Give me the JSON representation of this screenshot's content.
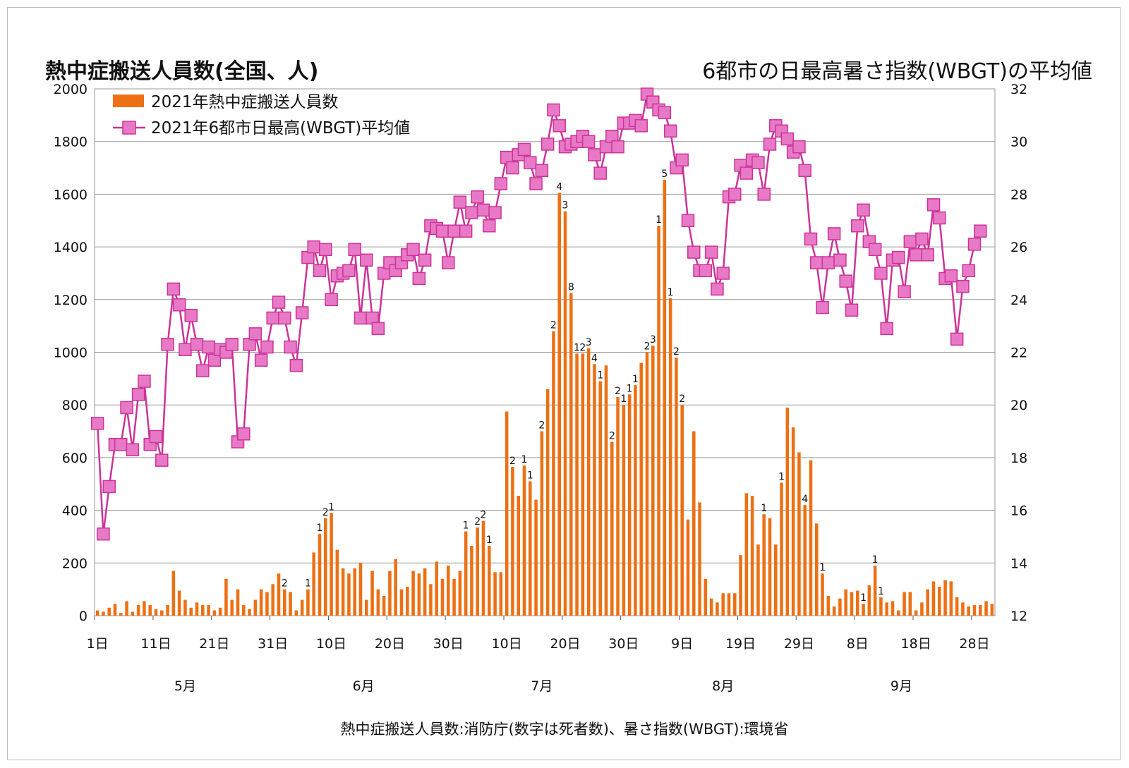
{
  "chart_data": {
    "type": "bar+line",
    "title_left": "熱中症搬送人員数(全国、人)",
    "title_right": "6都市の日最高暑さ指数(WBGT)の平均値",
    "source": "熱中症搬送人員数:消防庁(数字は死者数)、暑さ指数(WBGT):環境省",
    "left_axis": {
      "min": 0,
      "max": 2000,
      "ticks": [
        "0",
        "200",
        "400",
        "600",
        "800",
        "1000",
        "1200",
        "1400",
        "1600",
        "1800",
        "2000"
      ]
    },
    "right_axis": {
      "min": 12,
      "max": 32,
      "ticks": [
        "12",
        "14",
        "16",
        "18",
        "20",
        "22",
        "24",
        "26",
        "28",
        "30",
        "32"
      ]
    },
    "x_tick_labels": [
      "1日",
      "11日",
      "21日",
      "31日",
      "10日",
      "20日",
      "30日",
      "10日",
      "20日",
      "30日",
      "9日",
      "19日",
      "29日",
      "8日",
      "18日",
      "28日"
    ],
    "month_labels": [
      "5月",
      "6月",
      "7月",
      "8月",
      "9月"
    ],
    "grid": true,
    "legend_position": "top-left",
    "series": [
      {
        "name": "2021年熱中症搬送人員数",
        "kind": "bar",
        "axis": "left",
        "color": "#ED7014",
        "values": [
          20,
          15,
          30,
          45,
          10,
          55,
          15,
          40,
          55,
          40,
          25,
          20,
          40,
          170,
          95,
          60,
          30,
          50,
          40,
          40,
          20,
          30,
          140,
          60,
          100,
          40,
          25,
          60,
          100,
          90,
          120,
          160,
          100,
          90,
          20,
          60,
          100,
          240,
          310,
          370,
          390,
          250,
          180,
          160,
          180,
          200,
          60,
          170,
          100,
          75,
          170,
          215,
          100,
          110,
          170,
          160,
          180,
          120,
          205,
          140,
          190,
          140,
          170,
          320,
          265,
          335,
          360,
          265,
          165,
          165,
          775,
          565,
          455,
          570,
          510,
          440,
          700,
          860,
          1080,
          1605,
          1535,
          1225,
          995,
          995,
          1015,
          955,
          890,
          950,
          660,
          830,
          800,
          840,
          875,
          960,
          1000,
          1025,
          1480,
          1655,
          1205,
          980,
          800,
          365,
          700,
          430,
          140,
          65,
          50,
          85,
          85,
          85,
          230,
          465,
          455,
          270,
          385,
          370,
          270,
          505,
          790,
          715,
          620,
          420,
          590,
          350,
          160,
          75,
          35,
          65,
          100,
          90,
          95,
          45,
          115,
          190,
          70,
          50,
          55,
          20,
          90,
          90,
          20,
          50,
          100,
          130,
          110,
          135,
          130,
          70,
          50,
          35,
          40,
          40,
          55,
          45
        ],
        "death_labels": [
          {
            "day": 33,
            "text": "2"
          },
          {
            "day": 37,
            "text": "1"
          },
          {
            "day": 39,
            "text": "1"
          },
          {
            "day": 40,
            "text": "2"
          },
          {
            "day": 41,
            "text": "1"
          },
          {
            "day": 64,
            "text": "1"
          },
          {
            "day": 66,
            "text": "2"
          },
          {
            "day": 67,
            "text": "2"
          },
          {
            "day": 68,
            "text": "1"
          },
          {
            "day": 72,
            "text": "2"
          },
          {
            "day": 74,
            "text": "1"
          },
          {
            "day": 75,
            "text": "1"
          },
          {
            "day": 77,
            "text": "2"
          },
          {
            "day": 79,
            "text": "2"
          },
          {
            "day": 80,
            "text": "4"
          },
          {
            "day": 81,
            "text": "3"
          },
          {
            "day": 82,
            "text": "8"
          },
          {
            "day": 83,
            "text": "1"
          },
          {
            "day": 84,
            "text": "2"
          },
          {
            "day": 85,
            "text": "3"
          },
          {
            "day": 86,
            "text": "4"
          },
          {
            "day": 87,
            "text": "1"
          },
          {
            "day": 89,
            "text": "2"
          },
          {
            "day": 90,
            "text": "2"
          },
          {
            "day": 91,
            "text": "1"
          },
          {
            "day": 92,
            "text": "1"
          },
          {
            "day": 93,
            "text": "1"
          },
          {
            "day": 95,
            "text": "2"
          },
          {
            "day": 96,
            "text": "3"
          },
          {
            "day": 97,
            "text": "1"
          },
          {
            "day": 98,
            "text": "5"
          },
          {
            "day": 99,
            "text": "1"
          },
          {
            "day": 100,
            "text": "2"
          },
          {
            "day": 101,
            "text": "2"
          },
          {
            "day": 115,
            "text": "1"
          },
          {
            "day": 118,
            "text": "1"
          },
          {
            "day": 122,
            "text": "4"
          },
          {
            "day": 125,
            "text": "1"
          },
          {
            "day": 132,
            "text": "1"
          },
          {
            "day": 134,
            "text": "1"
          },
          {
            "day": 135,
            "text": "1"
          }
        ]
      },
      {
        "name": "2021年6都市日最高(WBGT)平均値",
        "kind": "line",
        "axis": "right",
        "color": "#CC3399",
        "marker_fill": "#E879C6",
        "values": [
          19.3,
          15.1,
          16.9,
          18.5,
          18.5,
          19.9,
          18.3,
          20.4,
          20.9,
          18.5,
          18.8,
          17.9,
          22.3,
          24.4,
          23.8,
          22.1,
          23.4,
          22.3,
          21.3,
          22.2,
          21.7,
          22.1,
          22.0,
          22.3,
          18.6,
          18.9,
          22.3,
          22.7,
          21.7,
          22.2,
          23.3,
          23.9,
          23.3,
          22.2,
          21.5,
          23.5,
          25.6,
          26.0,
          25.1,
          25.9,
          24.0,
          24.9,
          25.0,
          25.1,
          25.9,
          23.3,
          25.5,
          23.3,
          22.9,
          25.0,
          25.4,
          25.1,
          25.4,
          25.7,
          25.9,
          24.8,
          25.5,
          26.8,
          26.7,
          26.6,
          25.4,
          26.6,
          27.7,
          26.6,
          27.3,
          27.9,
          27.4,
          26.8,
          27.3,
          28.4,
          29.4,
          29.0,
          29.5,
          29.7,
          29.2,
          28.4,
          28.9,
          29.9,
          31.2,
          30.6,
          29.8,
          29.9,
          30.0,
          30.2,
          30.0,
          29.5,
          28.8,
          29.8,
          30.2,
          29.8,
          30.7,
          30.7,
          30.8,
          30.6,
          31.8,
          31.5,
          31.2,
          31.1,
          30.4,
          29.0,
          29.3,
          27.0,
          25.8,
          25.1,
          25.1,
          25.8,
          24.4,
          25.0,
          27.9,
          28.0,
          29.1,
          28.8,
          29.3,
          29.2,
          28.0,
          29.9,
          30.6,
          30.4,
          30.1,
          29.6,
          29.8,
          28.9,
          26.3,
          25.4,
          23.7,
          25.4,
          26.5,
          25.5,
          24.7,
          23.6,
          26.8,
          27.4,
          26.2,
          25.9,
          25.0,
          22.9,
          25.5,
          25.6,
          24.3,
          26.2,
          25.7,
          26.3,
          25.7,
          27.6,
          27.1,
          24.8,
          24.9,
          22.5,
          24.5,
          25.1,
          26.1,
          26.6
        ]
      }
    ]
  }
}
